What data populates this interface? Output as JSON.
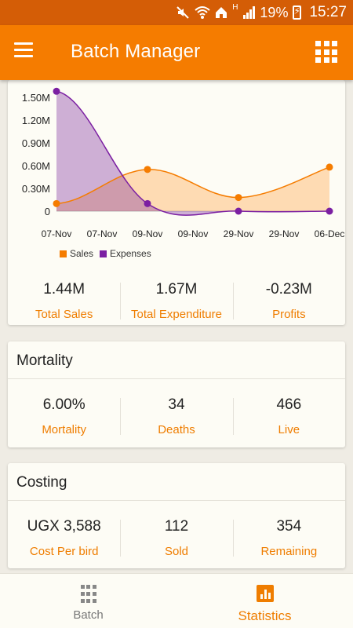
{
  "status_bar": {
    "battery": "19%",
    "clock": "15:27",
    "icons": [
      "mute-icon",
      "wifi-icon",
      "home-icon",
      "signal-h-icon",
      "signal-icon",
      "battery-charging-icon"
    ]
  },
  "app_bar": {
    "title": "Batch Manager",
    "menu_icon": "hamburger-menu-icon",
    "action_icon": "grid-apps-icon"
  },
  "chart_data": {
    "type": "area",
    "categories": [
      "07-Nov",
      "07-Nov",
      "09-Nov",
      "09-Nov",
      "29-Nov",
      "29-Nov",
      "06-Dec"
    ],
    "y_ticks": [
      "1.50M",
      "1.20M",
      "0.90M",
      "0.60M",
      "0.30M",
      "0"
    ],
    "ylim": [
      0,
      1.5
    ],
    "grid": false,
    "legend_position": "bottom-left",
    "series": [
      {
        "name": "Sales",
        "color": "#f57c00",
        "points": [
          [
            0,
            0.1
          ],
          [
            2,
            0.55
          ],
          [
            4,
            0.18
          ],
          [
            6,
            0.58
          ]
        ]
      },
      {
        "name": "Expenses",
        "color": "#7b1fa2",
        "points": [
          [
            0,
            1.58
          ],
          [
            2,
            0.1
          ],
          [
            4,
            0.0
          ],
          [
            6,
            0.0
          ]
        ]
      }
    ]
  },
  "summary": {
    "items": [
      {
        "value": "1.44M",
        "label": "Total Sales"
      },
      {
        "value": "1.67M",
        "label": "Total Expenditure"
      },
      {
        "value": "-0.23M",
        "label": "Profits"
      }
    ]
  },
  "mortality": {
    "title": "Mortality",
    "items": [
      {
        "value": "6.00%",
        "label": "Mortality"
      },
      {
        "value": "34",
        "label": "Deaths"
      },
      {
        "value": "466",
        "label": "Live"
      }
    ]
  },
  "costing": {
    "title": "Costing",
    "items": [
      {
        "value": "UGX 3,588",
        "label": "Cost Per bird"
      },
      {
        "value": "112",
        "label": "Sold"
      },
      {
        "value": "354",
        "label": "Remaining"
      }
    ]
  },
  "bottom_nav": {
    "tabs": [
      {
        "label": "Batch",
        "icon": "grid-icon",
        "active": false
      },
      {
        "label": "Statistics",
        "icon": "bar-chart-icon",
        "active": true
      }
    ]
  },
  "colors": {
    "status_bar": "#d45d06",
    "app_bar": "#f57c00",
    "accent": "#ef7d00",
    "sales": "#f57c00",
    "expenses": "#7b1fa2"
  }
}
